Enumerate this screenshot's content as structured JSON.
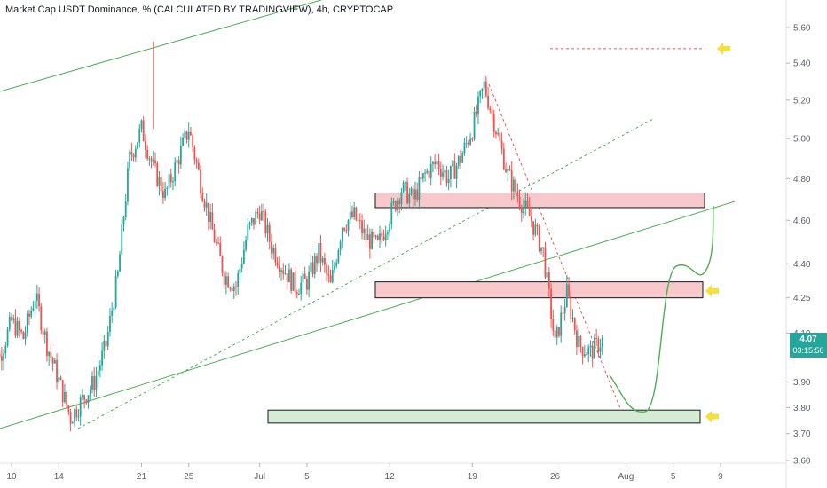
{
  "title": "Market Cap USDT Dominance, % (CALCULATED BY TRADINGVIEW), 4h, CRYPTOCAP",
  "last_price": "4.07",
  "countdown": "03:15:50",
  "colors": {
    "up": "#26a69a",
    "down": "#ef5350",
    "trend_line": "#4caf50",
    "resistance_fill": "#f8c9cb",
    "support_fill": "#d5ecd4",
    "arrow": "#f5e03b"
  },
  "chart_data": {
    "type": "candlestick",
    "timeframe": "4h",
    "y_axis": {
      "ticks": [
        "5.60",
        "5.40",
        "5.20",
        "5.00",
        "4.80",
        "4.60",
        "4.40",
        "4.25",
        "4.10",
        "3.90",
        "3.80",
        "3.70",
        "3.60"
      ],
      "scale": "log",
      "range": [
        3.57,
        5.75
      ]
    },
    "x_axis": {
      "ticks": [
        "10",
        "14",
        "21",
        "25",
        "Jul",
        "5",
        "12",
        "19",
        "26",
        "Aug",
        "5",
        "9"
      ]
    },
    "close_path": [
      [
        "Jun 8",
        4.22
      ],
      [
        "Jun 9",
        4.0
      ],
      [
        "Jun 10",
        4.15
      ],
      [
        "Jun 11",
        4.08
      ],
      [
        "Jun 12",
        4.26
      ],
      [
        "Jun 13",
        4.05
      ],
      [
        "Jun 15",
        3.76
      ],
      [
        "Jun 17",
        3.9
      ],
      [
        "Jun 18",
        4.05
      ],
      [
        "Jun 19",
        4.35
      ],
      [
        "Jun 20",
        4.9
      ],
      [
        "Jun 21",
        5.05
      ],
      [
        "Jun 22",
        4.85
      ],
      [
        "Jun 23",
        4.72
      ],
      [
        "Jun 24",
        4.88
      ],
      [
        "Jun 25",
        5.05
      ],
      [
        "Jun 26",
        4.78
      ],
      [
        "Jun 27",
        4.55
      ],
      [
        "Jun 28",
        4.35
      ],
      [
        "Jun 29",
        4.3
      ],
      [
        "Jun 30",
        4.55
      ],
      [
        "Jul 1",
        4.65
      ],
      [
        "Jul 2",
        4.48
      ],
      [
        "Jul 3",
        4.38
      ],
      [
        "Jul 4",
        4.3
      ],
      [
        "Jul 5",
        4.32
      ],
      [
        "Jul 6",
        4.45
      ],
      [
        "Jul 7",
        4.3
      ],
      [
        "Jul 8",
        4.58
      ],
      [
        "Jul 9",
        4.62
      ],
      [
        "Jul 10",
        4.52
      ],
      [
        "Jul 11",
        4.48
      ],
      [
        "Jul 12",
        4.62
      ],
      [
        "Jul 13",
        4.75
      ],
      [
        "Jul 14",
        4.7
      ],
      [
        "Jul 15",
        4.82
      ],
      [
        "Jul 16",
        4.88
      ],
      [
        "Jul 17",
        4.8
      ],
      [
        "Jul 18",
        4.9
      ],
      [
        "Jul 19",
        5.05
      ],
      [
        "Jul 20",
        5.28
      ],
      [
        "Jul 21",
        5.05
      ],
      [
        "Jul 22",
        4.82
      ],
      [
        "Jul 23",
        4.7
      ],
      [
        "Jul 24",
        4.6
      ],
      [
        "Jul 25",
        4.45
      ],
      [
        "Jul 26",
        4.05
      ],
      [
        "Jul 27",
        4.27
      ],
      [
        "Jul 28",
        4.05
      ],
      [
        "Jul 29",
        4.02
      ],
      [
        "Jul 30",
        4.07
      ]
    ],
    "annotations": [
      {
        "type": "zone",
        "color": "pink",
        "price_range": [
          4.66,
          4.73
        ]
      },
      {
        "type": "zone",
        "color": "pink",
        "price_range": [
          4.25,
          4.32
        ]
      },
      {
        "type": "zone",
        "color": "green",
        "price_range": [
          3.74,
          3.79
        ]
      },
      {
        "type": "horizontal_dashed",
        "color": "red",
        "price": 5.48
      },
      {
        "type": "ascending_channel",
        "color": "green"
      },
      {
        "type": "projected_path",
        "color": "green",
        "from_price": 3.95,
        "low_price": 3.78,
        "to_price": 4.65
      }
    ]
  }
}
